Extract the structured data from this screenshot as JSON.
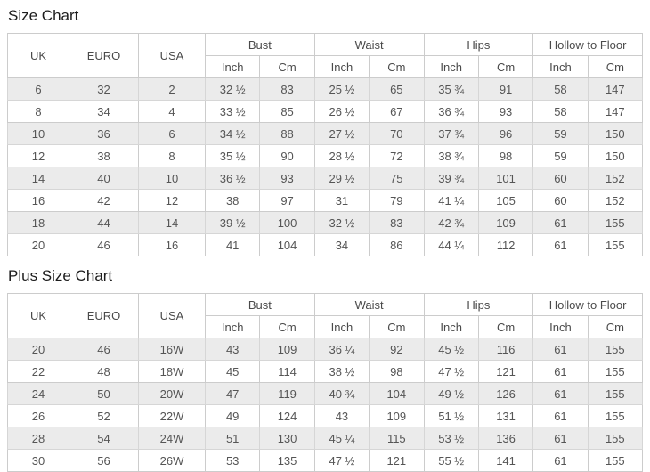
{
  "colors": {
    "stripe_row_bg": "#ebebeb",
    "table_border": "#cccccc",
    "cell_text": "#555555",
    "title_text": "#1c1c1c"
  },
  "tables": [
    {
      "title": "Size Chart",
      "group_headers": [
        {
          "label": "UK",
          "rowspan": 2
        },
        {
          "label": "EURO",
          "rowspan": 2
        },
        {
          "label": "USA",
          "rowspan": 2
        },
        {
          "label": "Bust",
          "colspan": 2
        },
        {
          "label": "Waist",
          "colspan": 2
        },
        {
          "label": "Hips",
          "colspan": 2
        },
        {
          "label": "Hollow to Floor",
          "colspan": 2
        }
      ],
      "sub_headers": [
        "Inch",
        "Cm",
        "Inch",
        "Cm",
        "Inch",
        "Cm",
        "Inch",
        "Cm"
      ],
      "rows": [
        [
          "6",
          "32",
          "2",
          "32 ½",
          "83",
          "25 ½",
          "65",
          "35 ¾",
          "91",
          "58",
          "147"
        ],
        [
          "8",
          "34",
          "4",
          "33 ½",
          "85",
          "26 ½",
          "67",
          "36 ¾",
          "93",
          "58",
          "147"
        ],
        [
          "10",
          "36",
          "6",
          "34 ½",
          "88",
          "27 ½",
          "70",
          "37 ¾",
          "96",
          "59",
          "150"
        ],
        [
          "12",
          "38",
          "8",
          "35 ½",
          "90",
          "28 ½",
          "72",
          "38 ¾",
          "98",
          "59",
          "150"
        ],
        [
          "14",
          "40",
          "10",
          "36 ½",
          "93",
          "29 ½",
          "75",
          "39 ¾",
          "101",
          "60",
          "152"
        ],
        [
          "16",
          "42",
          "12",
          "38",
          "97",
          "31",
          "79",
          "41 ¼",
          "105",
          "60",
          "152"
        ],
        [
          "18",
          "44",
          "14",
          "39 ½",
          "100",
          "32 ½",
          "83",
          "42 ¾",
          "109",
          "61",
          "155"
        ],
        [
          "20",
          "46",
          "16",
          "41",
          "104",
          "34",
          "86",
          "44 ¼",
          "112",
          "61",
          "155"
        ]
      ]
    },
    {
      "title": "Plus Size Chart",
      "group_headers": [
        {
          "label": "UK",
          "rowspan": 2
        },
        {
          "label": "EURO",
          "rowspan": 2
        },
        {
          "label": "USA",
          "rowspan": 2
        },
        {
          "label": "Bust",
          "colspan": 2
        },
        {
          "label": "Waist",
          "colspan": 2
        },
        {
          "label": "Hips",
          "colspan": 2
        },
        {
          "label": "Hollow to Floor",
          "colspan": 2
        }
      ],
      "sub_headers": [
        "Inch",
        "Cm",
        "Inch",
        "Cm",
        "Inch",
        "Cm",
        "Inch",
        "Cm"
      ],
      "rows": [
        [
          "20",
          "46",
          "16W",
          "43",
          "109",
          "36 ¼",
          "92",
          "45 ½",
          "116",
          "61",
          "155"
        ],
        [
          "22",
          "48",
          "18W",
          "45",
          "114",
          "38 ½",
          "98",
          "47 ½",
          "121",
          "61",
          "155"
        ],
        [
          "24",
          "50",
          "20W",
          "47",
          "119",
          "40 ¾",
          "104",
          "49 ½",
          "126",
          "61",
          "155"
        ],
        [
          "26",
          "52",
          "22W",
          "49",
          "124",
          "43",
          "109",
          "51 ½",
          "131",
          "61",
          "155"
        ],
        [
          "28",
          "54",
          "24W",
          "51",
          "130",
          "45 ¼",
          "115",
          "53 ½",
          "136",
          "61",
          "155"
        ],
        [
          "30",
          "56",
          "26W",
          "53",
          "135",
          "47 ½",
          "121",
          "55 ½",
          "141",
          "61",
          "155"
        ]
      ]
    }
  ]
}
